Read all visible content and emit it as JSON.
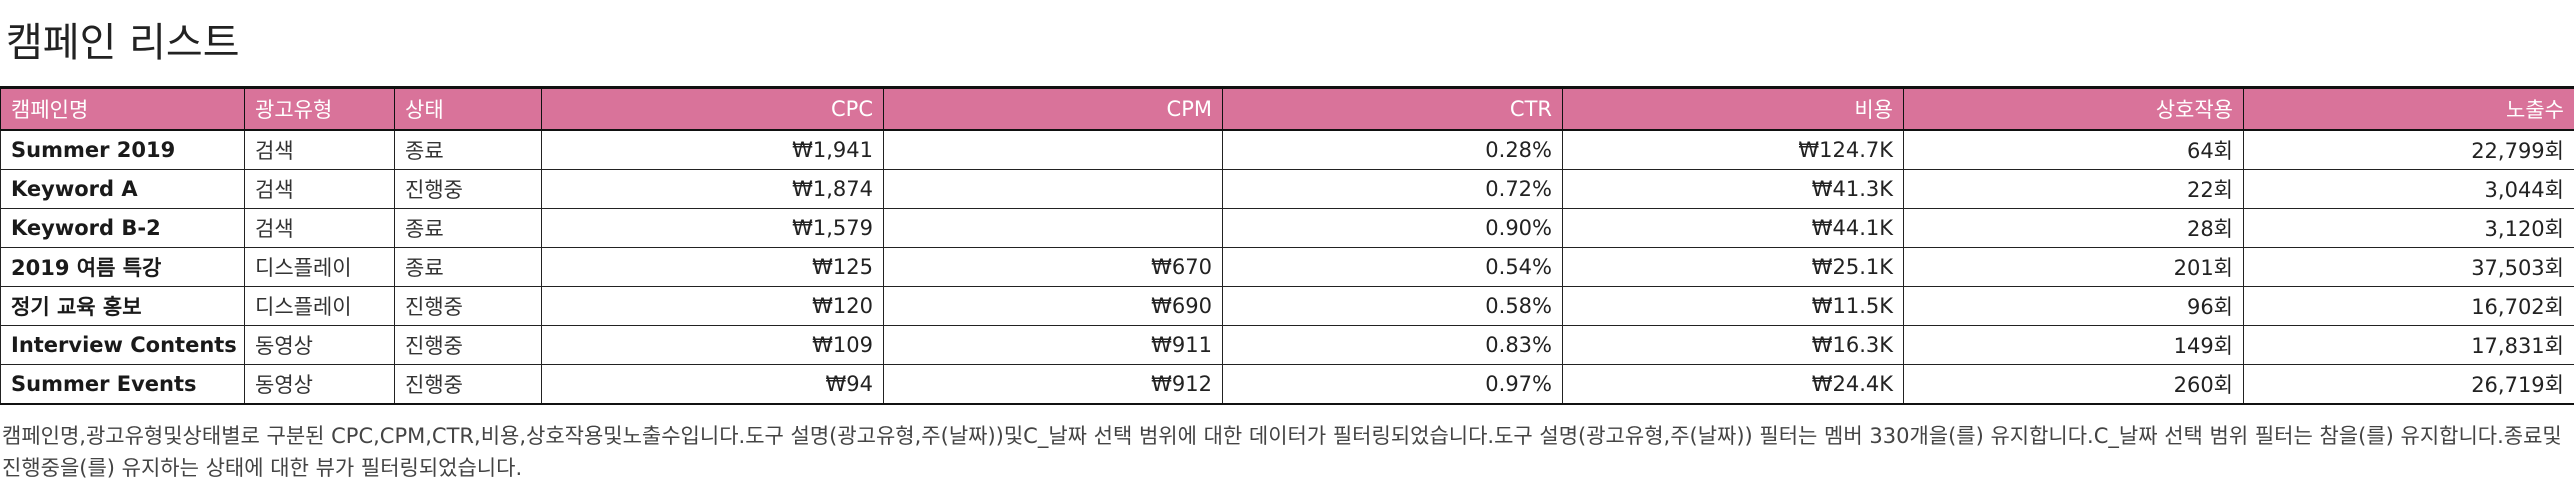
{
  "page": {
    "title": "캠페인 리스트"
  },
  "table": {
    "columns": [
      {
        "key": "name",
        "label": "캠페인명"
      },
      {
        "key": "ad_type",
        "label": "광고유형"
      },
      {
        "key": "status",
        "label": "상태"
      },
      {
        "key": "cpc",
        "label": "CPC"
      },
      {
        "key": "cpm",
        "label": "CPM"
      },
      {
        "key": "ctr",
        "label": "CTR"
      },
      {
        "key": "cost",
        "label": "비용"
      },
      {
        "key": "interactions",
        "label": "상호작용"
      },
      {
        "key": "impressions",
        "label": "노출수"
      }
    ],
    "rows": [
      {
        "name": "Summer 2019",
        "ad_type": "검색",
        "status": "종료",
        "cpc": "₩1,941",
        "cpm": "",
        "ctr": "0.28%",
        "cost": "₩124.7K",
        "interactions": "64회",
        "impressions": "22,799회"
      },
      {
        "name": "Keyword A",
        "ad_type": "검색",
        "status": "진행중",
        "cpc": "₩1,874",
        "cpm": "",
        "ctr": "0.72%",
        "cost": "₩41.3K",
        "interactions": "22회",
        "impressions": "3,044회"
      },
      {
        "name": "Keyword B-2",
        "ad_type": "검색",
        "status": "종료",
        "cpc": "₩1,579",
        "cpm": "",
        "ctr": "0.90%",
        "cost": "₩44.1K",
        "interactions": "28회",
        "impressions": "3,120회"
      },
      {
        "name": "2019 여름 특강",
        "ad_type": "디스플레이",
        "status": "종료",
        "cpc": "₩125",
        "cpm": "₩670",
        "ctr": "0.54%",
        "cost": "₩25.1K",
        "interactions": "201회",
        "impressions": "37,503회"
      },
      {
        "name": "정기 교육 홍보",
        "ad_type": "디스플레이",
        "status": "진행중",
        "cpc": "₩120",
        "cpm": "₩690",
        "ctr": "0.58%",
        "cost": "₩11.5K",
        "interactions": "96회",
        "impressions": "16,702회"
      },
      {
        "name": "Interview Contents",
        "ad_type": "동영상",
        "status": "진행중",
        "cpc": "₩109",
        "cpm": "₩911",
        "ctr": "0.83%",
        "cost": "₩16.3K",
        "interactions": "149회",
        "impressions": "17,831회"
      },
      {
        "name": "Summer Events",
        "ad_type": "동영상",
        "status": "진행중",
        "cpc": "₩94",
        "cpm": "₩912",
        "ctr": "0.97%",
        "cost": "₩24.4K",
        "interactions": "260회",
        "impressions": "26,719회"
      }
    ]
  },
  "caption": "캠페인명,광고유형및상태별로 구분된 CPC,CPM,CTR,비용,상호작용및노출수입니다.도구 설명(광고유형,주(날짜))및C_날짜 선택 범위에 대한 데이터가 필터링되었습니다.도구 설명(광고유형,주(날짜)) 필터는 멤버 330개을(를) 유지합니다.C_날짜 선택 범위 필터는 참을(를) 유지합니다.종료및진행중을(를) 유지하는 상태에 대한 뷰가 필터링되었습니다.",
  "colors": {
    "header_bg": "#d9739a",
    "header_text": "#ffffff",
    "border": "#111111"
  }
}
